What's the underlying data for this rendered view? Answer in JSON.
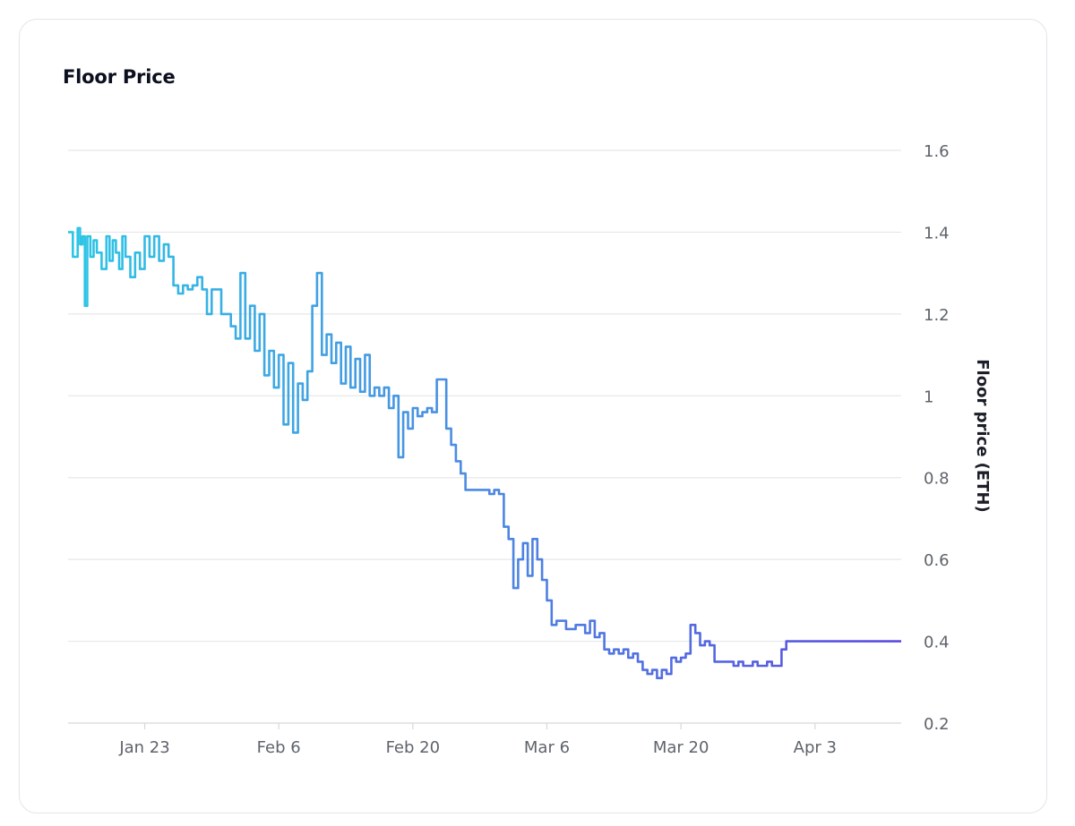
{
  "card": {
    "title": "Floor Price"
  },
  "chart_data": {
    "type": "line",
    "title": "Floor Price",
    "ylabel": "Floor price (ETH)",
    "xlabel": "",
    "ylim": [
      0.2,
      1.6
    ],
    "yticks": [
      {
        "value": 1.6,
        "label": "1.6"
      },
      {
        "value": 1.4,
        "label": "1.4"
      },
      {
        "value": 1.2,
        "label": "1.2"
      },
      {
        "value": 1.0,
        "label": "1"
      },
      {
        "value": 0.8,
        "label": "0.8"
      },
      {
        "value": 0.6,
        "label": "0.6"
      },
      {
        "value": 0.4,
        "label": "0.4"
      },
      {
        "value": 0.2,
        "label": "0.2"
      }
    ],
    "xlim": [
      "2023-01-15",
      "2023-04-12"
    ],
    "xticks": [
      {
        "date": "2023-01-23",
        "label": "Jan 23"
      },
      {
        "date": "2023-02-06",
        "label": "Feb 6"
      },
      {
        "date": "2023-02-20",
        "label": "Feb 20"
      },
      {
        "date": "2023-03-06",
        "label": "Mar 6"
      },
      {
        "date": "2023-03-20",
        "label": "Mar 20"
      },
      {
        "date": "2023-04-03",
        "label": "Apr 3"
      }
    ],
    "grid": "horizontal",
    "line_gradient": [
      "#2cc6e5",
      "#4a8fe2",
      "#5c4ae0"
    ],
    "series": [
      {
        "x": [
          "2023-01-15",
          "2023-01-15",
          "2023-01-16",
          "2023-01-16",
          "2023-01-16",
          "2023-01-16",
          "2023-01-17",
          "2023-01-17",
          "2023-01-17",
          "2023-01-18",
          "2023-01-18",
          "2023-01-19",
          "2023-01-19",
          "2023-01-19",
          "2023-01-20",
          "2023-01-20",
          "2023-01-20",
          "2023-01-21",
          "2023-01-21",
          "2023-01-22",
          "2023-01-22",
          "2023-01-23",
          "2023-01-23",
          "2023-01-24",
          "2023-01-24",
          "2023-01-25",
          "2023-01-25",
          "2023-01-26",
          "2023-01-26",
          "2023-01-27",
          "2023-01-27",
          "2023-01-28",
          "2023-01-28",
          "2023-01-29",
          "2023-01-29",
          "2023-01-30",
          "2023-01-31",
          "2023-02-01",
          "2023-02-01",
          "2023-02-02",
          "2023-02-02",
          "2023-02-03",
          "2023-02-03",
          "2023-02-04",
          "2023-02-04",
          "2023-02-05",
          "2023-02-05",
          "2023-02-06",
          "2023-02-06",
          "2023-02-07",
          "2023-02-07",
          "2023-02-08",
          "2023-02-08",
          "2023-02-09",
          "2023-02-09",
          "2023-02-10",
          "2023-02-10",
          "2023-02-11",
          "2023-02-11",
          "2023-02-12",
          "2023-02-12",
          "2023-02-13",
          "2023-02-13",
          "2023-02-14",
          "2023-02-14",
          "2023-02-15",
          "2023-02-15",
          "2023-02-16",
          "2023-02-16",
          "2023-02-17",
          "2023-02-17",
          "2023-02-18",
          "2023-02-18",
          "2023-02-19",
          "2023-02-19",
          "2023-02-20",
          "2023-02-20",
          "2023-02-21",
          "2023-02-21",
          "2023-02-22",
          "2023-02-22",
          "2023-02-23",
          "2023-02-23",
          "2023-02-24",
          "2023-02-24",
          "2023-02-25",
          "2023-02-25",
          "2023-02-26",
          "2023-02-26",
          "2023-02-27",
          "2023-02-27",
          "2023-02-28",
          "2023-02-28",
          "2023-03-01",
          "2023-03-01",
          "2023-03-02",
          "2023-03-02",
          "2023-03-03",
          "2023-03-03",
          "2023-03-04",
          "2023-03-04",
          "2023-03-05",
          "2023-03-05",
          "2023-03-06",
          "2023-03-06",
          "2023-03-07",
          "2023-03-08",
          "2023-03-09",
          "2023-03-10",
          "2023-03-10",
          "2023-03-11",
          "2023-03-11",
          "2023-03-12",
          "2023-03-12",
          "2023-03-13",
          "2023-03-13",
          "2023-03-14",
          "2023-03-14",
          "2023-03-15",
          "2023-03-15",
          "2023-03-16",
          "2023-03-16",
          "2023-03-17",
          "2023-03-17",
          "2023-03-18",
          "2023-03-18",
          "2023-03-19",
          "2023-03-19",
          "2023-03-20",
          "2023-03-20",
          "2023-03-21",
          "2023-03-21",
          "2023-03-22",
          "2023-03-22",
          "2023-03-23",
          "2023-03-23",
          "2023-03-24",
          "2023-03-24",
          "2023-03-25",
          "2023-03-25",
          "2023-03-26",
          "2023-03-26",
          "2023-03-27",
          "2023-03-27",
          "2023-03-28",
          "2023-03-28",
          "2023-03-29",
          "2023-03-29",
          "2023-03-30",
          "2023-03-30",
          "2023-03-31",
          "2023-03-31",
          "2023-04-01",
          "2023-04-01",
          "2023-04-02",
          "2023-04-02",
          "2023-04-03",
          "2023-04-03",
          "2023-04-04",
          "2023-04-04",
          "2023-04-05",
          "2023-04-05",
          "2023-04-06",
          "2023-04-07",
          "2023-04-08",
          "2023-04-09",
          "2023-04-10",
          "2023-04-11",
          "2023-04-11",
          "2023-04-12"
        ],
        "y": [
          1.4,
          1.34,
          1.41,
          1.37,
          1.39,
          1.22,
          1.39,
          1.34,
          1.38,
          1.35,
          1.31,
          1.39,
          1.33,
          1.38,
          1.35,
          1.31,
          1.39,
          1.34,
          1.29,
          1.35,
          1.31,
          1.39,
          1.34,
          1.39,
          1.33,
          1.37,
          1.34,
          1.27,
          1.25,
          1.27,
          1.26,
          1.27,
          1.29,
          1.26,
          1.2,
          1.26,
          1.2,
          1.17,
          1.14,
          1.3,
          1.14,
          1.22,
          1.11,
          1.2,
          1.05,
          1.11,
          1.02,
          1.1,
          0.93,
          1.08,
          0.91,
          1.03,
          0.99,
          1.06,
          1.22,
          1.3,
          1.1,
          1.15,
          1.08,
          1.13,
          1.03,
          1.12,
          1.02,
          1.09,
          1.01,
          1.1,
          1.0,
          1.02,
          1.0,
          1.02,
          0.97,
          1.0,
          0.85,
          0.96,
          0.92,
          0.97,
          0.95,
          0.96,
          0.97,
          0.96,
          1.04,
          1.04,
          0.92,
          0.88,
          0.84,
          0.81,
          0.77,
          0.77,
          0.77,
          0.77,
          0.77,
          0.76,
          0.77,
          0.76,
          0.68,
          0.65,
          0.53,
          0.6,
          0.64,
          0.56,
          0.65,
          0.6,
          0.55,
          0.5,
          0.44,
          0.45,
          0.43,
          0.44,
          0.42,
          0.45,
          0.41,
          0.42,
          0.38,
          0.37,
          0.38,
          0.37,
          0.38,
          0.36,
          0.37,
          0.35,
          0.33,
          0.32,
          0.33,
          0.31,
          0.33,
          0.32,
          0.36,
          0.35,
          0.36,
          0.37,
          0.44,
          0.42,
          0.39,
          0.4,
          0.39,
          0.35,
          0.35,
          0.35,
          0.35,
          0.34,
          0.35,
          0.34,
          0.34,
          0.35,
          0.34,
          0.34,
          0.35,
          0.34,
          0.34,
          0.38,
          0.4,
          0.4,
          0.4,
          0.4,
          0.4,
          0.4,
          0.4,
          0.4,
          0.4,
          0.4,
          0.4,
          0.4,
          0.4,
          0.4,
          0.4,
          0.4,
          0.4,
          0.4,
          0.4,
          0.4
        ]
      }
    ]
  }
}
